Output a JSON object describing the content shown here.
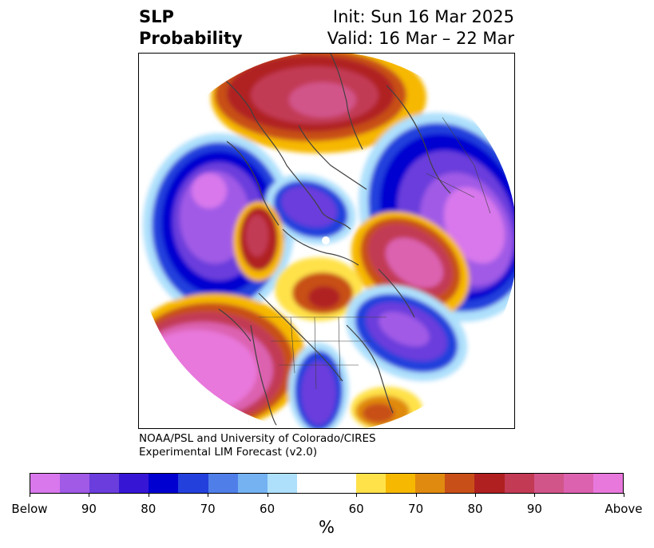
{
  "header": {
    "title_line1": "SLP",
    "title_line2": "Probability",
    "init_text": "Init: Sun 16 Mar 2025",
    "valid_text": "Valid: 16 Mar – 22 Mar"
  },
  "credit": {
    "line1": "NOAA/PSL and University of Colorado/CIRES",
    "line2": "Experimental LIM Forecast (v2.0)"
  },
  "colorbar": {
    "units": "%",
    "colors": [
      "#d878ec",
      "#a05ae6",
      "#6a3ddc",
      "#3616d4",
      "#0000d0",
      "#2440dc",
      "#4f7ee8",
      "#74b2f2",
      "#aee0fc",
      "#ffffff",
      "#ffffff",
      "#ffe24a",
      "#f6b800",
      "#e08a10",
      "#c85018",
      "#b02020",
      "#c23a54",
      "#d2558a",
      "#dc62b0",
      "#e878dc"
    ],
    "tick_labels": [
      "Below",
      "90",
      "80",
      "70",
      "60",
      "60",
      "70",
      "80",
      "90",
      "Above"
    ]
  },
  "map": {
    "colors": {
      "below_strong": "#a05ae6",
      "below_mid": "#3616d4",
      "below_weak": "#74b2f2",
      "neutral": "#ffffff",
      "above_weak": "#f6b800",
      "above_mid": "#b02020",
      "above_strong": "#e878dc",
      "coast": "#404040"
    }
  }
}
